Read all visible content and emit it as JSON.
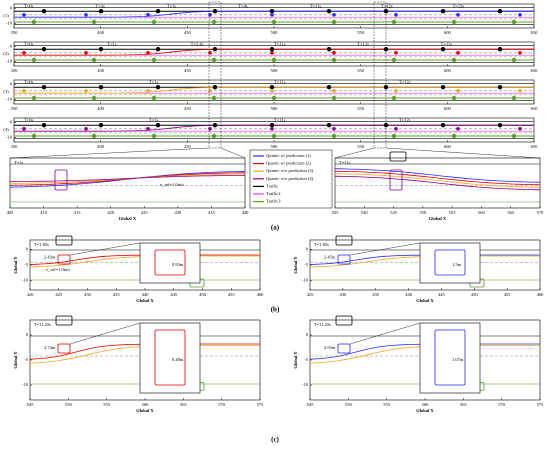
{
  "overview": {
    "rows": [
      {
        "label": "(1)",
        "events": [
          "T=0s",
          "T=3s",
          "T=1s",
          "T=4s",
          "T=11s",
          "T=12s",
          "T=13s"
        ]
      },
      {
        "label": "(2)",
        "events": [
          "T=0s",
          "T=1s",
          "T=2.4s",
          "T=11s",
          "T=12s",
          "T=13s"
        ]
      },
      {
        "label": "(3)",
        "events": [
          "T=0s",
          "T=1s",
          "T=11s",
          "T=12s"
        ]
      },
      {
        "label": "(4)",
        "events": [
          "T=0s",
          "T=1s",
          "T=11s",
          "T=12s"
        ]
      }
    ],
    "xticks": [
      350,
      400,
      450,
      500,
      550,
      600,
      650
    ],
    "yticks": [
      0,
      -10
    ]
  },
  "legend": [
    "Quintic w/ prediction (1)",
    "Quartic w/ prediction (2)",
    "Quintic w/o prediction (3)",
    "Quartic w/o prediction (4)",
    "Traffic",
    "Traffic2",
    "Traffic3"
  ],
  "zooms": [
    {
      "title": "T=1s",
      "annotation": "v_ref=1.0m/s",
      "xlabel": "Global X",
      "xticks": [
        405,
        410,
        415,
        420,
        425,
        430,
        435,
        440
      ]
    },
    {
      "title": "T=11s",
      "xlabel": "Global X",
      "xticks": [
        535,
        540,
        545,
        550,
        555,
        560,
        565,
        570
      ]
    }
  ],
  "details": [
    {
      "title": "T=1.85s",
      "gap": "2.43m",
      "offset": "0.93m",
      "annotation": "v_ref=1.0m/s",
      "xlabel": "Global X",
      "ylabel": "Global Y",
      "xticks": [
        420,
        425,
        430,
        435,
        440,
        445,
        450,
        455,
        460
      ],
      "yticks": [
        0,
        -5,
        -10
      ]
    },
    {
      "title": "T=1.85s",
      "gap": "2.45m",
      "offset": "1.5m",
      "xlabel": "Global X",
      "ylabel": "Global Y",
      "xticks": [
        425,
        430,
        435,
        440,
        445,
        450,
        455,
        460
      ],
      "yticks": [
        0,
        -5,
        -10
      ]
    },
    {
      "title": "T=11.25s",
      "gap": "2.74m",
      "offset": "0.48m",
      "xlabel": "Global X",
      "ylabel": "Global Y",
      "xticks": [
        545,
        550,
        555,
        560,
        565,
        570,
        575
      ],
      "yticks": [
        0,
        -5,
        -10
      ]
    },
    {
      "title": "T=11.25s",
      "gap": "2.93m",
      "offset": "1.07m",
      "xlabel": "Global X",
      "ylabel": "Global Y",
      "xticks": [
        545,
        550,
        555,
        560,
        565,
        570,
        575
      ],
      "yticks": [
        0,
        -5,
        -10
      ]
    }
  ],
  "captions": [
    "(a)",
    "(b)",
    "(c)"
  ]
}
